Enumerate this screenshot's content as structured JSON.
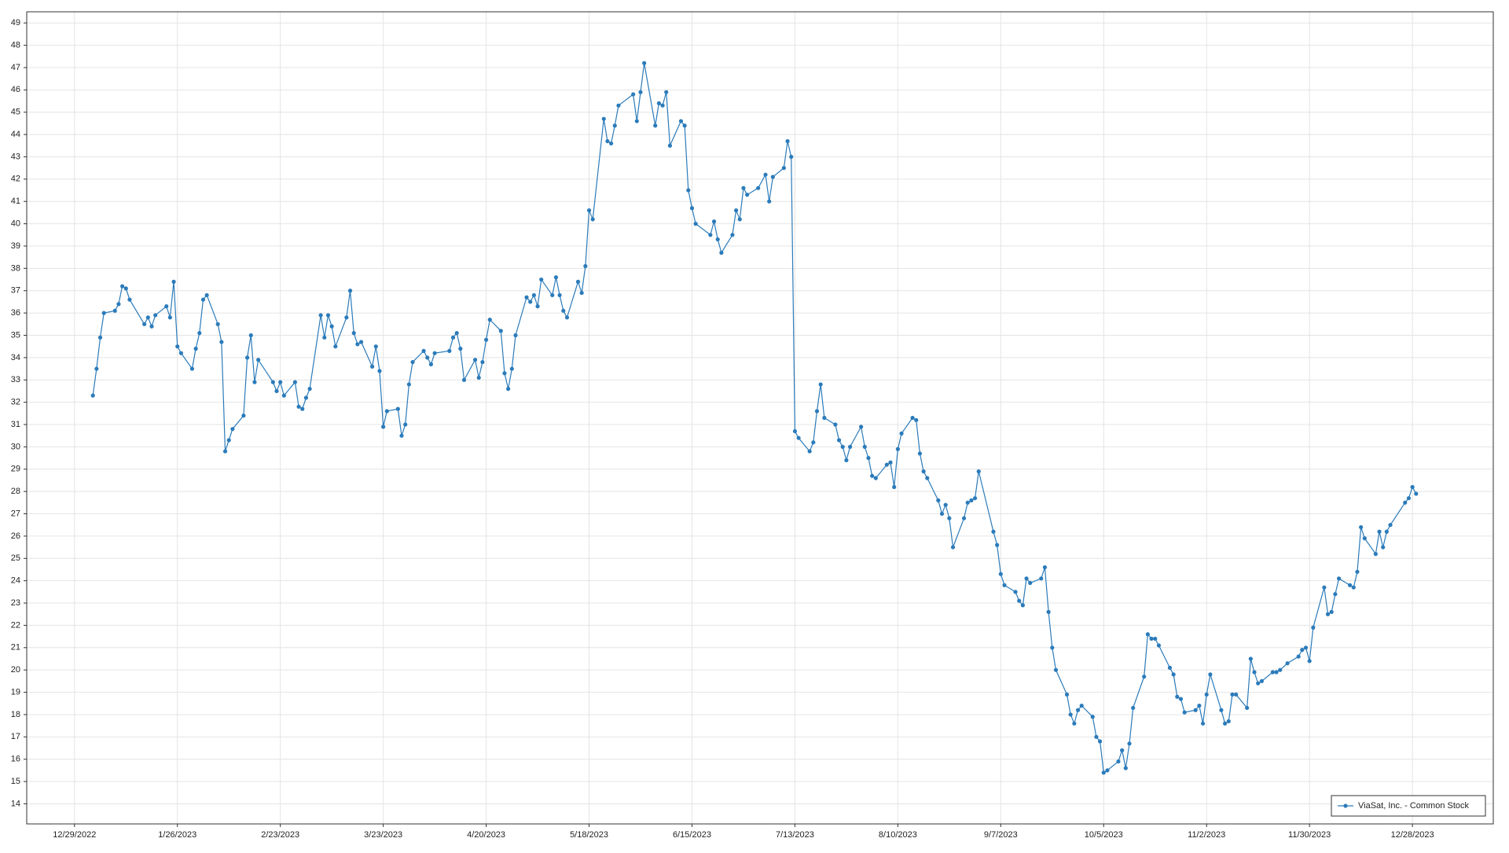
{
  "chart_data": {
    "type": "line",
    "x": [
      "1/3/2023",
      "1/4/2023",
      "1/5/2023",
      "1/6/2023",
      "1/9/2023",
      "1/10/2023",
      "1/11/2023",
      "1/12/2023",
      "1/13/2023",
      "1/17/2023",
      "1/18/2023",
      "1/19/2023",
      "1/20/2023",
      "1/23/2023",
      "1/24/2023",
      "1/25/2023",
      "1/26/2023",
      "1/27/2023",
      "1/30/2023",
      "1/31/2023",
      "2/1/2023",
      "2/2/2023",
      "2/3/2023",
      "2/6/2023",
      "2/7/2023",
      "2/8/2023",
      "2/9/2023",
      "2/10/2023",
      "2/13/2023",
      "2/14/2023",
      "2/15/2023",
      "2/16/2023",
      "2/17/2023",
      "2/21/2023",
      "2/22/2023",
      "2/23/2023",
      "2/24/2023",
      "2/27/2023",
      "2/28/2023",
      "3/1/2023",
      "3/2/2023",
      "3/3/2023",
      "3/6/2023",
      "3/7/2023",
      "3/8/2023",
      "3/9/2023",
      "3/10/2023",
      "3/13/2023",
      "3/14/2023",
      "3/15/2023",
      "3/16/2023",
      "3/17/2023",
      "3/20/2023",
      "3/21/2023",
      "3/22/2023",
      "3/23/2023",
      "3/24/2023",
      "3/27/2023",
      "3/28/2023",
      "3/29/2023",
      "3/30/2023",
      "3/31/2023",
      "4/3/2023",
      "4/4/2023",
      "4/5/2023",
      "4/6/2023",
      "4/10/2023",
      "4/11/2023",
      "4/12/2023",
      "4/13/2023",
      "4/14/2023",
      "4/17/2023",
      "4/18/2023",
      "4/19/2023",
      "4/20/2023",
      "4/21/2023",
      "4/24/2023",
      "4/25/2023",
      "4/26/2023",
      "4/27/2023",
      "4/28/2023",
      "5/1/2023",
      "5/2/2023",
      "5/3/2023",
      "5/4/2023",
      "5/5/2023",
      "5/8/2023",
      "5/9/2023",
      "5/10/2023",
      "5/11/2023",
      "5/12/2023",
      "5/15/2023",
      "5/16/2023",
      "5/17/2023",
      "5/18/2023",
      "5/19/2023",
      "5/22/2023",
      "5/23/2023",
      "5/24/2023",
      "5/25/2023",
      "5/26/2023",
      "5/30/2023",
      "5/31/2023",
      "6/1/2023",
      "6/2/2023",
      "6/5/2023",
      "6/6/2023",
      "6/7/2023",
      "6/8/2023",
      "6/9/2023",
      "6/12/2023",
      "6/13/2023",
      "6/14/2023",
      "6/15/2023",
      "6/16/2023",
      "6/20/2023",
      "6/21/2023",
      "6/22/2023",
      "6/23/2023",
      "6/26/2023",
      "6/27/2023",
      "6/28/2023",
      "6/29/2023",
      "6/30/2023",
      "7/3/2023",
      "7/5/2023",
      "7/6/2023",
      "7/7/2023",
      "7/10/2023",
      "7/11/2023",
      "7/12/2023",
      "7/13/2023",
      "7/14/2023",
      "7/17/2023",
      "7/18/2023",
      "7/19/2023",
      "7/20/2023",
      "7/21/2023",
      "7/24/2023",
      "7/25/2023",
      "7/26/2023",
      "7/27/2023",
      "7/28/2023",
      "7/31/2023",
      "8/1/2023",
      "8/2/2023",
      "8/3/2023",
      "8/4/2023",
      "8/7/2023",
      "8/8/2023",
      "8/9/2023",
      "8/10/2023",
      "8/11/2023",
      "8/14/2023",
      "8/15/2023",
      "8/16/2023",
      "8/17/2023",
      "8/18/2023",
      "8/21/2023",
      "8/22/2023",
      "8/23/2023",
      "8/24/2023",
      "8/25/2023",
      "8/28/2023",
      "8/29/2023",
      "8/30/2023",
      "8/31/2023",
      "9/1/2023",
      "9/5/2023",
      "9/6/2023",
      "9/7/2023",
      "9/8/2023",
      "9/11/2023",
      "9/12/2023",
      "9/13/2023",
      "9/14/2023",
      "9/15/2023",
      "9/18/2023",
      "9/19/2023",
      "9/20/2023",
      "9/21/2023",
      "9/22/2023",
      "9/25/2023",
      "9/26/2023",
      "9/27/2023",
      "9/28/2023",
      "9/29/2023",
      "10/2/2023",
      "10/3/2023",
      "10/4/2023",
      "10/5/2023",
      "10/6/2023",
      "10/9/2023",
      "10/10/2023",
      "10/11/2023",
      "10/12/2023",
      "10/13/2023",
      "10/16/2023",
      "10/17/2023",
      "10/18/2023",
      "10/19/2023",
      "10/20/2023",
      "10/23/2023",
      "10/24/2023",
      "10/25/2023",
      "10/26/2023",
      "10/27/2023",
      "10/30/2023",
      "10/31/2023",
      "11/1/2023",
      "11/2/2023",
      "11/3/2023",
      "11/6/2023",
      "11/7/2023",
      "11/8/2023",
      "11/9/2023",
      "11/10/2023",
      "11/13/2023",
      "11/14/2023",
      "11/15/2023",
      "11/16/2023",
      "11/17/2023",
      "11/20/2023",
      "11/21/2023",
      "11/22/2023",
      "11/24/2023",
      "11/27/2023",
      "11/28/2023",
      "11/29/2023",
      "11/30/2023",
      "12/1/2023",
      "12/4/2023",
      "12/5/2023",
      "12/6/2023",
      "12/7/2023",
      "12/8/2023",
      "12/11/2023",
      "12/12/2023",
      "12/13/2023",
      "12/14/2023",
      "12/15/2023",
      "12/18/2023",
      "12/19/2023",
      "12/20/2023",
      "12/21/2023",
      "12/22/2023",
      "12/26/2023",
      "12/27/2023",
      "12/28/2023",
      "12/29/2023"
    ],
    "series": [
      {
        "name": "ViaSat, Inc. - Common Stock",
        "color": "#2b7bba",
        "values": [
          32.3,
          33.5,
          34.9,
          36.0,
          36.1,
          36.4,
          37.2,
          37.1,
          36.6,
          35.5,
          35.8,
          35.4,
          35.9,
          36.3,
          35.8,
          37.4,
          34.5,
          34.2,
          33.5,
          34.4,
          35.1,
          36.6,
          36.8,
          35.5,
          34.7,
          29.8,
          30.3,
          30.8,
          31.4,
          34.0,
          35.0,
          32.9,
          33.9,
          32.9,
          32.5,
          32.9,
          32.3,
          32.9,
          31.8,
          31.7,
          32.2,
          32.6,
          35.9,
          34.9,
          35.9,
          35.4,
          34.5,
          35.8,
          37.0,
          35.1,
          34.6,
          34.7,
          33.6,
          34.5,
          33.4,
          30.9,
          31.6,
          31.7,
          30.5,
          31.0,
          32.8,
          33.8,
          34.3,
          34.0,
          33.7,
          34.2,
          34.3,
          34.9,
          35.1,
          34.4,
          33.0,
          33.9,
          33.1,
          33.8,
          34.8,
          35.7,
          35.2,
          33.3,
          32.6,
          33.5,
          35.0,
          36.7,
          36.5,
          36.8,
          36.3,
          37.5,
          36.8,
          37.6,
          36.8,
          36.1,
          35.8,
          37.4,
          36.9,
          38.1,
          40.6,
          40.2,
          44.7,
          43.7,
          43.6,
          44.4,
          45.3,
          45.8,
          44.6,
          45.9,
          47.2,
          44.4,
          45.4,
          45.3,
          45.9,
          43.5,
          44.6,
          44.4,
          41.5,
          40.7,
          40.0,
          39.5,
          40.1,
          39.3,
          38.7,
          39.5,
          40.6,
          40.2,
          41.6,
          41.3,
          41.6,
          42.2,
          41.0,
          42.1,
          42.5,
          43.7,
          43.0,
          30.7,
          30.4,
          29.8,
          30.2,
          31.6,
          32.8,
          31.3,
          31.0,
          30.3,
          30.0,
          29.4,
          30.0,
          30.9,
          30.0,
          29.5,
          28.7,
          28.6,
          29.2,
          29.3,
          28.2,
          29.9,
          30.6,
          31.3,
          31.2,
          29.7,
          28.9,
          28.6,
          27.6,
          27.0,
          27.4,
          26.8,
          25.5,
          26.8,
          27.5,
          27.6,
          27.7,
          28.9,
          26.2,
          25.6,
          24.3,
          23.8,
          23.5,
          23.1,
          22.9,
          24.1,
          23.9,
          24.1,
          24.6,
          22.6,
          21.0,
          20.0,
          18.9,
          18.0,
          17.6,
          18.2,
          18.4,
          17.9,
          17.0,
          16.8,
          15.4,
          15.5,
          15.9,
          16.4,
          15.6,
          16.7,
          18.3,
          19.7,
          21.6,
          21.4,
          21.4,
          21.1,
          20.1,
          19.8,
          18.8,
          18.7,
          18.1,
          18.2,
          18.4,
          17.6,
          18.9,
          19.8,
          18.2,
          17.6,
          17.7,
          18.9,
          18.9,
          18.3,
          20.5,
          19.9,
          19.4,
          19.5,
          19.9,
          19.9,
          20.0,
          20.3,
          20.6,
          20.9,
          21.0,
          20.4,
          21.9,
          23.7,
          22.5,
          22.6,
          23.4,
          24.1,
          23.8,
          23.7,
          24.4,
          26.4,
          25.9,
          25.2,
          26.2,
          25.5,
          26.2,
          26.5,
          27.5,
          27.7,
          28.2,
          27.9
        ]
      }
    ],
    "xlim": [
      "12/16/2022",
      "1/19/2024"
    ],
    "xticks": [
      "12/29/2022",
      "1/26/2023",
      "2/23/2023",
      "3/23/2023",
      "4/20/2023",
      "5/18/2023",
      "6/15/2023",
      "7/13/2023",
      "8/10/2023",
      "9/7/2023",
      "10/5/2023",
      "11/2/2023",
      "11/30/2023",
      "12/28/2023"
    ],
    "ylim": [
      13.1,
      49.5
    ],
    "yticks": [
      14,
      15,
      16,
      17,
      18,
      19,
      20,
      21,
      22,
      23,
      24,
      25,
      26,
      27,
      28,
      29,
      30,
      31,
      32,
      33,
      34,
      35,
      36,
      37,
      38,
      39,
      40,
      41,
      42,
      43,
      44,
      45,
      46,
      47,
      48,
      49
    ],
    "grid": true,
    "legend": "lower right"
  }
}
